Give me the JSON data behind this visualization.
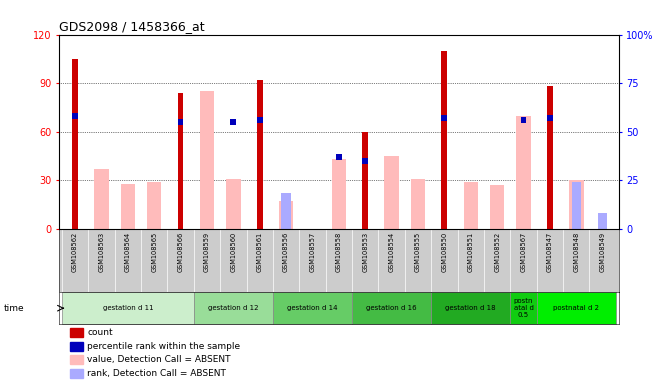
{
  "title": "GDS2098 / 1458366_at",
  "samples": [
    "GSM108562",
    "GSM108563",
    "GSM108564",
    "GSM108565",
    "GSM108566",
    "GSM108559",
    "GSM108560",
    "GSM108561",
    "GSM108556",
    "GSM108557",
    "GSM108558",
    "GSM108553",
    "GSM108554",
    "GSM108555",
    "GSM108550",
    "GSM108551",
    "GSM108552",
    "GSM108567",
    "GSM108547",
    "GSM108548",
    "GSM108549"
  ],
  "count": [
    105,
    0,
    0,
    0,
    84,
    0,
    0,
    92,
    0,
    0,
    0,
    60,
    0,
    0,
    110,
    0,
    0,
    0,
    88,
    0,
    0
  ],
  "percentile_rank": [
    58,
    0,
    0,
    0,
    55,
    0,
    55,
    56,
    0,
    0,
    37,
    35,
    0,
    0,
    57,
    0,
    0,
    56,
    57,
    0,
    0
  ],
  "value_absent": [
    0,
    37,
    28,
    29,
    0,
    85,
    31,
    0,
    17,
    0,
    43,
    0,
    45,
    31,
    0,
    29,
    27,
    70,
    0,
    30,
    0
  ],
  "rank_absent": [
    0,
    0,
    0,
    0,
    0,
    0,
    0,
    0,
    22,
    0,
    0,
    0,
    0,
    0,
    0,
    0,
    0,
    0,
    0,
    29,
    10
  ],
  "groups": [
    {
      "label": "gestation d 11",
      "start": 0,
      "end": 4,
      "color": "#cceecc"
    },
    {
      "label": "gestation d 12",
      "start": 5,
      "end": 7,
      "color": "#99dd99"
    },
    {
      "label": "gestation d 14",
      "start": 8,
      "end": 10,
      "color": "#66cc66"
    },
    {
      "label": "gestation d 16",
      "start": 11,
      "end": 13,
      "color": "#44bb44"
    },
    {
      "label": "gestation d 18",
      "start": 14,
      "end": 16,
      "color": "#22aa22"
    },
    {
      "label": "postn\natal d\n0.5",
      "start": 17,
      "end": 17,
      "color": "#11cc11"
    },
    {
      "label": "postnatal d 2",
      "start": 18,
      "end": 20,
      "color": "#00ee00"
    }
  ],
  "ylim_left": [
    0,
    120
  ],
  "ylim_right": [
    0,
    100
  ],
  "yticks_left": [
    0,
    30,
    60,
    90,
    120
  ],
  "yticks_right": [
    0,
    25,
    50,
    75,
    100
  ],
  "count_color": "#cc0000",
  "rank_color": "#0000bb",
  "value_absent_color": "#ffbbbb",
  "rank_absent_color": "#aaaaff",
  "tick_bg_color": "#cccccc",
  "plot_bg_color": "#ffffff"
}
